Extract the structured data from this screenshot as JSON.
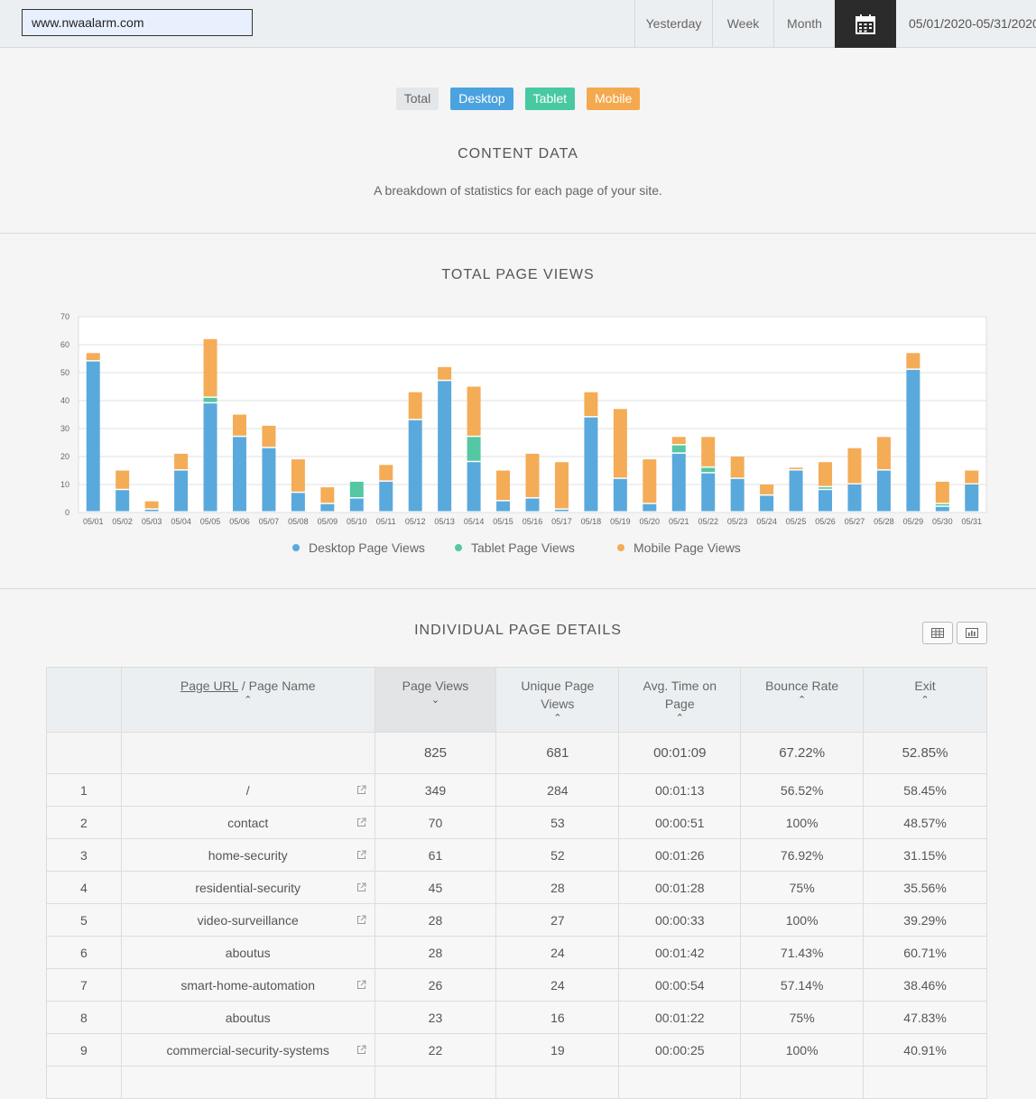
{
  "header": {
    "site": "www.nwaalarm.com",
    "ranges": [
      "Yesterday",
      "Week",
      "Month"
    ],
    "date_range": "05/01/2020-05/31/2020"
  },
  "filters": [
    "Total",
    "Desktop",
    "Tablet",
    "Mobile"
  ],
  "content": {
    "title": "CONTENT DATA",
    "subtitle": "A breakdown of statistics for each page of your site."
  },
  "chart_title": "TOTAL PAGE VIEWS",
  "chart_data": {
    "type": "bar",
    "stacked": true,
    "categories": [
      "05/01",
      "05/02",
      "05/03",
      "05/04",
      "05/05",
      "05/06",
      "05/07",
      "05/08",
      "05/09",
      "05/10",
      "05/11",
      "05/12",
      "05/13",
      "05/14",
      "05/15",
      "05/16",
      "05/17",
      "05/18",
      "05/19",
      "05/20",
      "05/21",
      "05/22",
      "05/23",
      "05/24",
      "05/25",
      "05/26",
      "05/27",
      "05/28",
      "05/29",
      "05/30",
      "05/31"
    ],
    "series": [
      {
        "name": "Desktop Page Views",
        "color": "#5aa9dc",
        "values": [
          54,
          8,
          1,
          15,
          39,
          27,
          23,
          7,
          3,
          5,
          11,
          33,
          47,
          18,
          4,
          5,
          1,
          34,
          12,
          3,
          21,
          14,
          12,
          6,
          15,
          8,
          10,
          15,
          51,
          2,
          10
        ]
      },
      {
        "name": "Tablet Page Views",
        "color": "#55c7a3",
        "values": [
          0,
          0,
          0,
          0,
          2,
          0,
          0,
          0,
          0,
          6,
          0,
          0,
          0,
          9,
          0,
          0,
          0,
          0,
          0,
          0,
          3,
          2,
          0,
          0,
          0,
          1,
          0,
          0,
          0,
          1,
          0
        ]
      },
      {
        "name": "Mobile Page Views",
        "color": "#f4ac57",
        "values": [
          3,
          7,
          3,
          6,
          21,
          8,
          8,
          12,
          6,
          0,
          6,
          10,
          5,
          18,
          11,
          16,
          17,
          9,
          25,
          16,
          3,
          11,
          8,
          4,
          1,
          9,
          13,
          12,
          6,
          8,
          5
        ]
      }
    ],
    "ylim": [
      0,
      70
    ],
    "yticks": [
      0,
      10,
      20,
      30,
      40,
      50,
      60,
      70
    ],
    "grid": true,
    "legend": "bottom"
  },
  "details": {
    "title": "INDIVIDUAL PAGE DETAILS",
    "columns": {
      "url_link": "Page URL",
      "url_rest": " / Page Name",
      "views": "Page Views",
      "unique": "Unique Page Views",
      "time": "Avg. Time on Page",
      "bounce": "Bounce Rate",
      "exit": "Exit"
    },
    "totals": {
      "views": "825",
      "unique": "681",
      "time": "00:01:09",
      "bounce": "67.22%",
      "exit": "52.85%"
    },
    "rows": [
      {
        "n": "1",
        "url": "/",
        "ext": true,
        "views": "349",
        "unique": "284",
        "time": "00:01:13",
        "bounce": "56.52%",
        "exit": "58.45%"
      },
      {
        "n": "2",
        "url": "contact",
        "ext": true,
        "views": "70",
        "unique": "53",
        "time": "00:00:51",
        "bounce": "100%",
        "exit": "48.57%"
      },
      {
        "n": "3",
        "url": "home-security",
        "ext": true,
        "views": "61",
        "unique": "52",
        "time": "00:01:26",
        "bounce": "76.92%",
        "exit": "31.15%"
      },
      {
        "n": "4",
        "url": "residential-security",
        "ext": true,
        "views": "45",
        "unique": "28",
        "time": "00:01:28",
        "bounce": "75%",
        "exit": "35.56%"
      },
      {
        "n": "5",
        "url": "video-surveillance",
        "ext": true,
        "views": "28",
        "unique": "27",
        "time": "00:00:33",
        "bounce": "100%",
        "exit": "39.29%"
      },
      {
        "n": "6",
        "url": "aboutus",
        "ext": false,
        "views": "28",
        "unique": "24",
        "time": "00:01:42",
        "bounce": "71.43%",
        "exit": "60.71%"
      },
      {
        "n": "7",
        "url": "smart-home-automation",
        "ext": true,
        "views": "26",
        "unique": "24",
        "time": "00:00:54",
        "bounce": "57.14%",
        "exit": "38.46%"
      },
      {
        "n": "8",
        "url": "aboutus",
        "ext": false,
        "views": "23",
        "unique": "16",
        "time": "00:01:22",
        "bounce": "75%",
        "exit": "47.83%"
      },
      {
        "n": "9",
        "url": "commercial-security-systems",
        "ext": true,
        "views": "22",
        "unique": "19",
        "time": "00:00:25",
        "bounce": "100%",
        "exit": "40.91%"
      }
    ]
  }
}
